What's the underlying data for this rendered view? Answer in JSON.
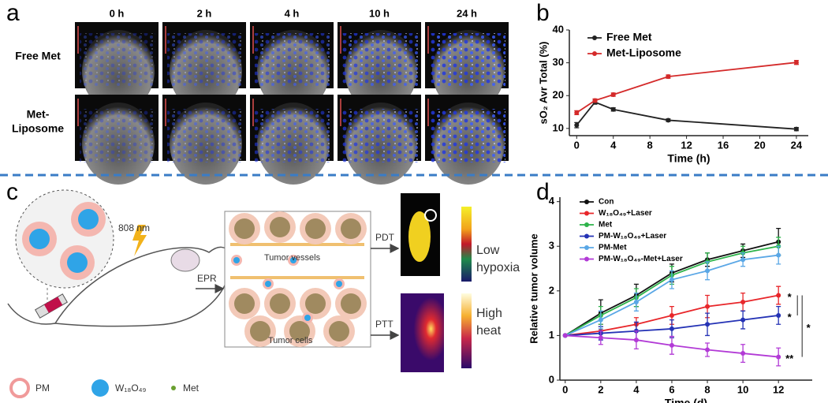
{
  "panel_labels": [
    "a",
    "b",
    "c",
    "d"
  ],
  "panel_a": {
    "columns": [
      "0 h",
      "2 h",
      "4 h",
      "10 h",
      "24 h"
    ],
    "rows": [
      [
        "Free Met"
      ],
      [
        "Met-",
        "Liposome"
      ]
    ]
  },
  "panel_c": {
    "laser": "808 nm",
    "epr": "EPR",
    "vessels": "Tumor vessels",
    "cells": "Tumor cells",
    "pdt": "PDT",
    "ptt": "PTT",
    "hypoxia": [
      "Low",
      "hypoxia"
    ],
    "heat": [
      "High",
      "heat"
    ],
    "legend": [
      "PM",
      "W₁₈O₄₉",
      "Met"
    ]
  },
  "chart_data": [
    {
      "type": "line",
      "xlabel": "Time (h)",
      "ylabel": "sO₂ Avr Total (%)",
      "x": [
        0,
        2,
        4,
        10,
        24
      ],
      "xlim": [
        -0.8,
        25.3
      ],
      "xticks": [
        0,
        4,
        8,
        12,
        16,
        20,
        24
      ],
      "ylim": [
        7.8,
        40
      ],
      "yticks": [
        10,
        20,
        30,
        40
      ],
      "legend": "upper left",
      "series": [
        {
          "name": "Free Met",
          "color": "#222222",
          "values": [
            11,
            18,
            15.8,
            12.5,
            9.8
          ],
          "errors": [
            0.8,
            0.6,
            0.5,
            0.4,
            0.5
          ]
        },
        {
          "name": "Met-Liposome",
          "color": "#d42a2a",
          "values": [
            14.8,
            18.5,
            20.3,
            25.8,
            30.1
          ],
          "errors": [
            0.6,
            0.5,
            0.5,
            0.5,
            0.6
          ]
        }
      ]
    },
    {
      "type": "line",
      "xlabel": "Time (d)",
      "ylabel": "Relative tumor volume",
      "x": [
        0,
        2,
        4,
        6,
        8,
        10,
        12
      ],
      "xlim": [
        -0.3,
        13.9
      ],
      "xticks": [
        0,
        2,
        4,
        6,
        8,
        10,
        12
      ],
      "ylim": [
        0,
        4.1
      ],
      "yticks": [
        0,
        1,
        2,
        3,
        4
      ],
      "legend": "upper left",
      "annotations": [
        "*",
        "*",
        "*",
        "**"
      ],
      "series": [
        {
          "name": "Con",
          "color": "#111111",
          "values": [
            1,
            1.5,
            1.9,
            2.4,
            2.7,
            2.9,
            3.1
          ],
          "errors": [
            0,
            0.3,
            0.25,
            0.2,
            0.15,
            0.15,
            0.3
          ]
        },
        {
          "name": "W₁₈O₄₉+Laser",
          "color": "#e8262a",
          "values": [
            1,
            1.1,
            1.25,
            1.45,
            1.65,
            1.75,
            1.9
          ],
          "errors": [
            0,
            0.15,
            0.15,
            0.2,
            0.25,
            0.2,
            0.2
          ]
        },
        {
          "name": "Met",
          "color": "#2db34a",
          "values": [
            1,
            1.45,
            1.85,
            2.35,
            2.65,
            2.85,
            3.0
          ],
          "errors": [
            0,
            0.2,
            0.2,
            0.2,
            0.2,
            0.15,
            0.2
          ]
        },
        {
          "name": "PM-W₁₈O₄₉+Laser",
          "color": "#2432b5",
          "values": [
            1,
            1.05,
            1.1,
            1.15,
            1.25,
            1.35,
            1.45
          ],
          "errors": [
            0,
            0.15,
            0.2,
            0.2,
            0.25,
            0.2,
            0.2
          ]
        },
        {
          "name": "PM-Met",
          "color": "#5aa7e6",
          "values": [
            1,
            1.35,
            1.75,
            2.25,
            2.45,
            2.7,
            2.8
          ],
          "errors": [
            0,
            0.2,
            0.2,
            0.2,
            0.2,
            0.15,
            0.2
          ]
        },
        {
          "name": "PM-W₁₈O₄₉-Met+Laser",
          "color": "#b23ad6",
          "values": [
            1,
            0.95,
            0.9,
            0.78,
            0.68,
            0.6,
            0.52
          ],
          "errors": [
            0,
            0.15,
            0.2,
            0.2,
            0.15,
            0.2,
            0.2
          ]
        }
      ]
    }
  ]
}
